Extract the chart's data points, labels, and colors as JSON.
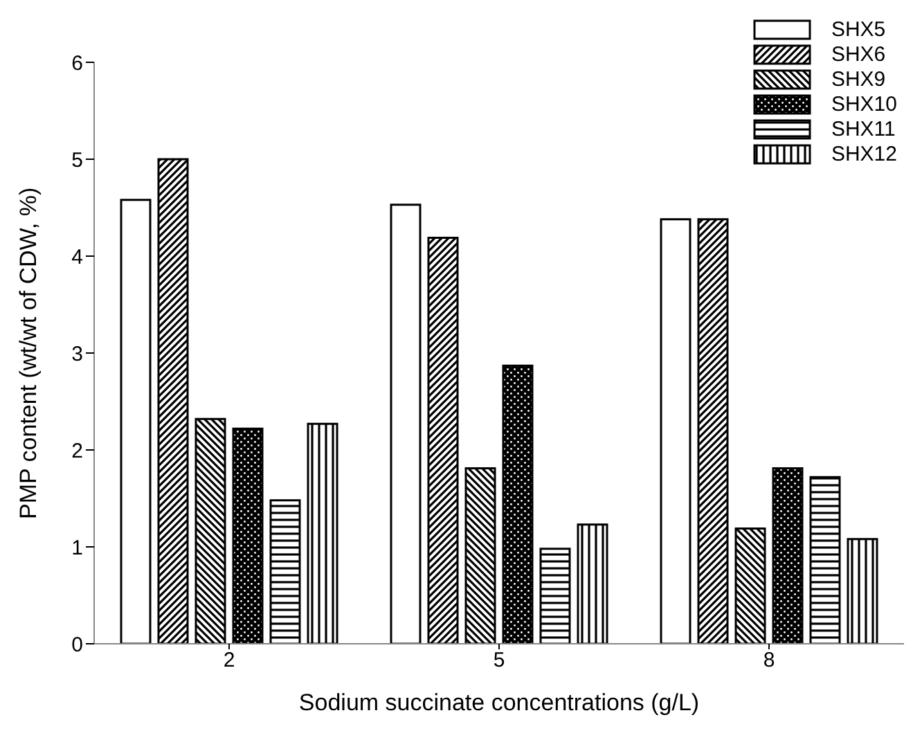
{
  "chart_data": {
    "type": "bar",
    "xlabel": "Sodium succinate concentrations (g/L)",
    "ylabel": "PMP content (wt/wt of CDW, %)",
    "categories": [
      "2",
      "5",
      "8"
    ],
    "series": [
      {
        "name": "SHX5",
        "color": "#000000",
        "values": [
          4.58,
          4.53,
          4.38
        ]
      },
      {
        "name": "SHX6",
        "color": "#000000",
        "values": [
          5.0,
          4.19,
          4.38
        ]
      },
      {
        "name": "SHX9",
        "color": "#000000",
        "values": [
          2.32,
          1.81,
          1.19
        ]
      },
      {
        "name": "SHX10",
        "color": "#000000",
        "values": [
          2.22,
          2.87,
          1.81
        ]
      },
      {
        "name": "SHX11",
        "color": "#000000",
        "values": [
          1.48,
          0.98,
          1.72
        ]
      },
      {
        "name": "SHX12",
        "color": "#000000",
        "values": [
          2.27,
          1.23,
          1.08
        ]
      }
    ],
    "ylim": [
      0,
      6
    ],
    "yticks": [
      0,
      1,
      2,
      3,
      4,
      5,
      6
    ],
    "legend": "top right"
  }
}
